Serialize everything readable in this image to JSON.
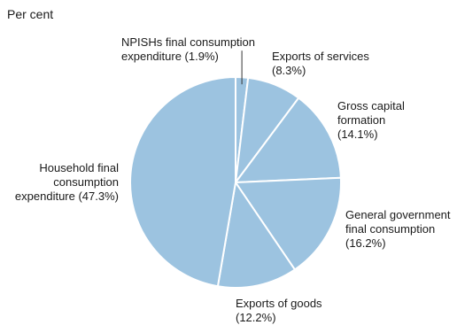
{
  "chart_data": {
    "type": "pie",
    "unit_label": "Per cent",
    "slices": [
      {
        "label_lines": [
          "NPISHs final consumption",
          "expenditure (1.9%)"
        ],
        "value": 1.9
      },
      {
        "label_lines": [
          "Exports of services",
          "(8.3%)"
        ],
        "value": 8.3
      },
      {
        "label_lines": [
          "Gross capital",
          "formation",
          "(14.1%)"
        ],
        "value": 14.1
      },
      {
        "label_lines": [
          "General government",
          "final consumption",
          "(16.2%)"
        ],
        "value": 16.2
      },
      {
        "label_lines": [
          "Exports of goods",
          "(12.2%)"
        ],
        "value": 12.2
      },
      {
        "label_lines": [
          "Household final",
          "consumption",
          "expenditure (47.3%)"
        ],
        "value": 47.3
      }
    ],
    "slice_color": "#9cc3e0",
    "border_color": "#ffffff",
    "leader_color": "#333333",
    "legend": "none"
  }
}
